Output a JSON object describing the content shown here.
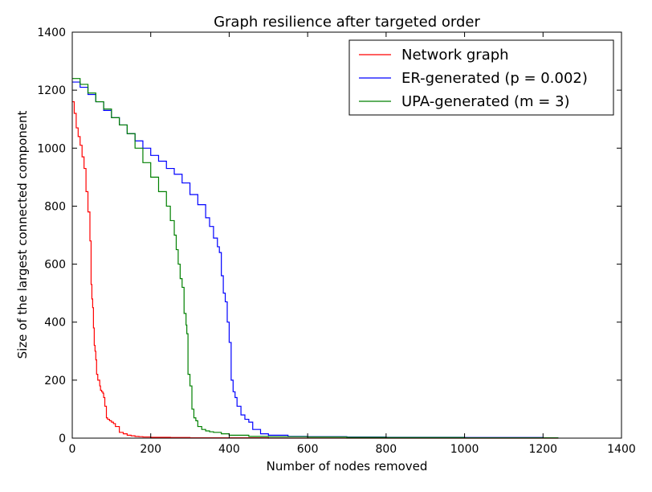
{
  "chart_data": {
    "type": "line",
    "title": "Graph resilience after targeted order",
    "xlabel": "Number of nodes removed",
    "ylabel": "Size of the largest connected component",
    "xlim": [
      0,
      1400
    ],
    "ylim": [
      0,
      1400
    ],
    "xticks": [
      "0",
      "200",
      "400",
      "600",
      "800",
      "1000",
      "1200",
      "1400"
    ],
    "yticks": [
      "0",
      "200",
      "400",
      "600",
      "800",
      "1000",
      "1200",
      "1400"
    ],
    "grid": false,
    "legend_position": "top-right",
    "series": [
      {
        "name": "Network graph",
        "color": "#ff0000",
        "x": [
          0,
          5,
          10,
          15,
          20,
          25,
          30,
          35,
          40,
          45,
          48,
          50,
          52,
          54,
          56,
          58,
          60,
          62,
          65,
          70,
          72,
          75,
          78,
          80,
          83,
          87,
          90,
          95,
          100,
          105,
          110,
          120,
          130,
          140,
          150,
          160,
          170,
          180,
          200,
          250,
          300,
          400,
          500,
          600,
          800,
          1000,
          1200,
          1239
        ],
        "y": [
          1160,
          1120,
          1070,
          1040,
          1010,
          970,
          930,
          850,
          780,
          680,
          530,
          480,
          450,
          380,
          320,
          300,
          270,
          220,
          200,
          180,
          165,
          160,
          155,
          140,
          110,
          70,
          65,
          60,
          55,
          50,
          40,
          20,
          15,
          10,
          8,
          6,
          5,
          4,
          3,
          2,
          1,
          1,
          0,
          0,
          0,
          0,
          0,
          0
        ]
      },
      {
        "name": "ER-generated (p = 0.002)",
        "color": "#0000ff",
        "x": [
          0,
          20,
          40,
          60,
          80,
          100,
          120,
          140,
          160,
          180,
          200,
          220,
          240,
          260,
          280,
          300,
          320,
          340,
          350,
          360,
          370,
          375,
          380,
          385,
          390,
          395,
          400,
          405,
          410,
          415,
          420,
          430,
          440,
          450,
          460,
          480,
          500,
          550,
          600,
          700,
          800,
          1000,
          1200,
          1239
        ],
        "y": [
          1228,
          1210,
          1185,
          1160,
          1130,
          1105,
          1080,
          1050,
          1025,
          1000,
          975,
          955,
          930,
          910,
          880,
          840,
          805,
          760,
          730,
          690,
          660,
          640,
          560,
          500,
          470,
          400,
          330,
          200,
          160,
          140,
          110,
          80,
          65,
          55,
          30,
          15,
          10,
          6,
          5,
          4,
          3,
          2,
          1,
          1
        ]
      },
      {
        "name": "UPA-generated (m = 3)",
        "color": "#008000",
        "x": [
          0,
          20,
          40,
          60,
          80,
          100,
          120,
          140,
          160,
          180,
          200,
          220,
          240,
          250,
          260,
          265,
          270,
          275,
          280,
          285,
          290,
          292,
          295,
          300,
          305,
          310,
          315,
          320,
          330,
          340,
          350,
          360,
          380,
          400,
          450,
          500,
          600,
          700,
          800,
          1000,
          1200,
          1239
        ],
        "y": [
          1240,
          1220,
          1190,
          1160,
          1135,
          1105,
          1080,
          1050,
          1000,
          950,
          900,
          850,
          800,
          750,
          700,
          650,
          600,
          550,
          520,
          430,
          390,
          360,
          220,
          180,
          100,
          70,
          60,
          40,
          30,
          25,
          22,
          20,
          15,
          10,
          6,
          5,
          4,
          3,
          2,
          1,
          1,
          1
        ]
      }
    ]
  }
}
